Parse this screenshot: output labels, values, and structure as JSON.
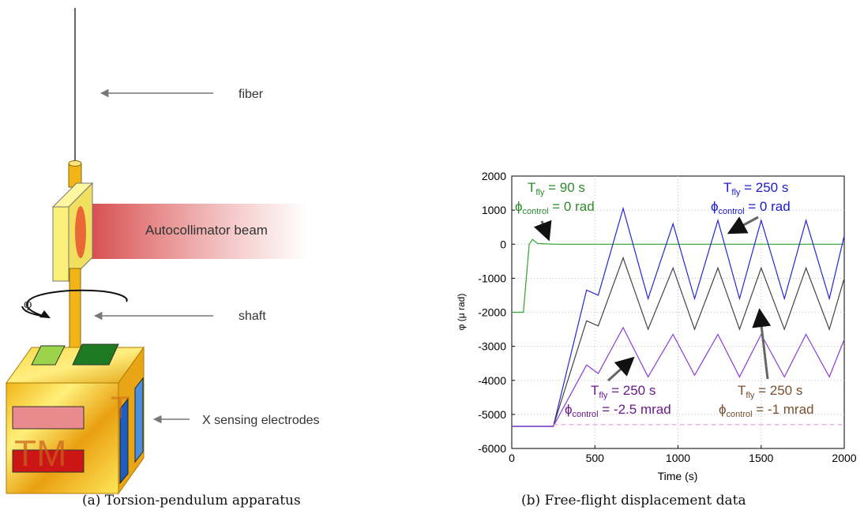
{
  "left_panel": {
    "labels": {
      "fiber": "fiber",
      "beam": "Autocollimator beam",
      "phi": "φ",
      "shaft": "shaft",
      "electrodes": "X sensing electrodes",
      "tm": "TM"
    },
    "caption": "(a) Torsion-pendulum apparatus"
  },
  "right_panel": {
    "caption": "(b) Free-flight displacement data"
  },
  "chart_data": {
    "type": "line",
    "xlabel": "Time (s)",
    "ylabel": "φ (μ rad)",
    "xlim": [
      0,
      2000
    ],
    "ylim": [
      -6000,
      2000
    ],
    "xticks": [
      "0",
      "500",
      "1000",
      "1500",
      "2000"
    ],
    "yticks": [
      "-6000",
      "-5000",
      "-4000",
      "-3000",
      "-2000",
      "-1000",
      "0",
      "1000",
      "2000"
    ],
    "grid": true,
    "series": [
      {
        "color": "#2ea32e",
        "points": [
          [
            0,
            -2000
          ],
          [
            70,
            -2000
          ],
          [
            105,
            0
          ],
          [
            125,
            140
          ],
          [
            155,
            20
          ],
          [
            260,
            0
          ],
          [
            2000,
            0
          ]
        ]
      },
      {
        "color": "#2626d6",
        "points": [
          [
            0,
            -5350
          ],
          [
            250,
            -5350
          ],
          [
            450,
            -1350
          ],
          [
            520,
            -1500
          ],
          [
            670,
            1050
          ],
          [
            820,
            -1600
          ],
          [
            970,
            600
          ],
          [
            1100,
            -1600
          ],
          [
            1240,
            700
          ],
          [
            1370,
            -1600
          ],
          [
            1500,
            700
          ],
          [
            1640,
            -1600
          ],
          [
            1770,
            700
          ],
          [
            1910,
            -1600
          ],
          [
            2000,
            250
          ]
        ]
      },
      {
        "color": "#444444",
        "points": [
          [
            0,
            -5350
          ],
          [
            250,
            -5350
          ],
          [
            450,
            -2250
          ],
          [
            520,
            -2400
          ],
          [
            670,
            -400
          ],
          [
            820,
            -2500
          ],
          [
            970,
            -700
          ],
          [
            1100,
            -2500
          ],
          [
            1240,
            -700
          ],
          [
            1370,
            -2500
          ],
          [
            1500,
            -700
          ],
          [
            1640,
            -2500
          ],
          [
            1770,
            -700
          ],
          [
            1910,
            -2500
          ],
          [
            2000,
            -1000
          ]
        ]
      },
      {
        "color": "#8a3ad9",
        "points": [
          [
            0,
            -5350
          ],
          [
            250,
            -5350
          ],
          [
            450,
            -3550
          ],
          [
            520,
            -3800
          ],
          [
            670,
            -2450
          ],
          [
            820,
            -3900
          ],
          [
            970,
            -2650
          ],
          [
            1100,
            -3850
          ],
          [
            1240,
            -2650
          ],
          [
            1370,
            -3900
          ],
          [
            1500,
            -2650
          ],
          [
            1640,
            -3900
          ],
          [
            1770,
            -2650
          ],
          [
            1910,
            -3900
          ],
          [
            2000,
            -2800
          ]
        ]
      },
      {
        "color": "#e89ae0",
        "dashed": true,
        "points": [
          [
            250,
            -5300
          ],
          [
            2000,
            -5300
          ]
        ]
      }
    ],
    "annotations": [
      {
        "lines": [
          "T_fly = 90 s",
          "φ_control = 0 rad"
        ],
        "color": "#2e8b2e"
      },
      {
        "lines": [
          "T_fly = 250 s",
          "φ_control = 0 rad"
        ],
        "color": "#1a1ad0"
      },
      {
        "lines": [
          "T_fly = 250 s",
          "φ_control = -2.5 mrad"
        ],
        "color": "#6a1a8a"
      },
      {
        "lines": [
          "T_fly = 250 s",
          "φ_control = -1 mrad"
        ],
        "color": "#7a5030"
      }
    ]
  }
}
